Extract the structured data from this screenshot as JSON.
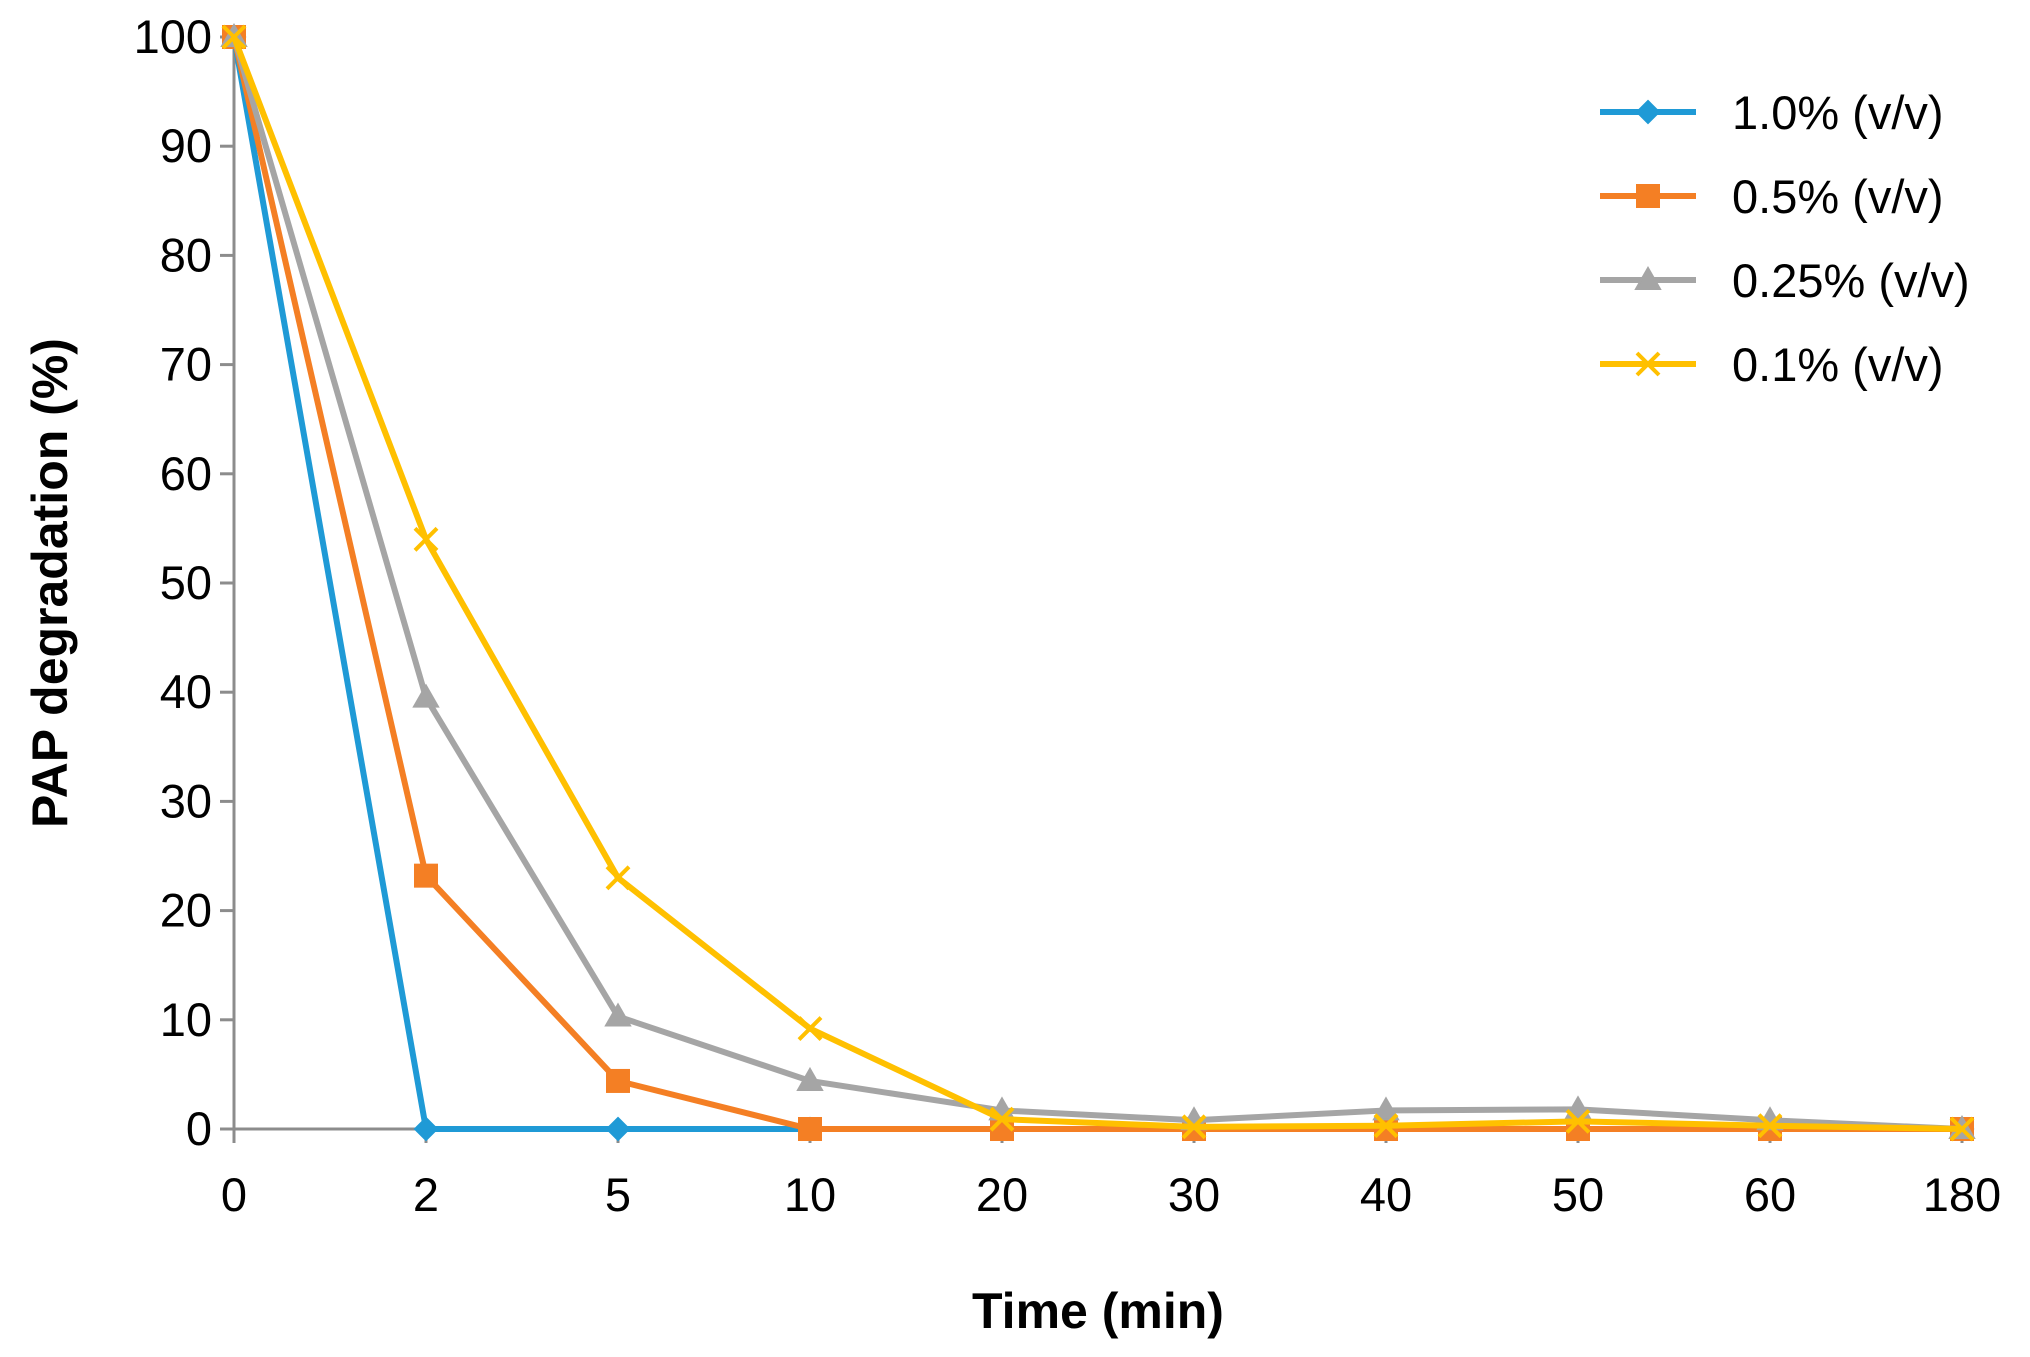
{
  "chart_data": {
    "type": "line",
    "title": "",
    "xlabel": "Time (min)",
    "ylabel": "PAP degradation (%)",
    "categories": [
      "0",
      "2",
      "5",
      "10",
      "20",
      "30",
      "40",
      "50",
      "60",
      "180"
    ],
    "ylim": [
      0,
      100
    ],
    "yticks": [
      0,
      10,
      20,
      30,
      40,
      50,
      60,
      70,
      80,
      90,
      100
    ],
    "grid": false,
    "legend_position": "top-right",
    "series": [
      {
        "name": "1.0% (v/v)",
        "color": "#1f9ad6",
        "marker": "diamond",
        "values": [
          100,
          0,
          0,
          0,
          0,
          0,
          0,
          0,
          0,
          0
        ]
      },
      {
        "name": "0.5% (v/v)",
        "color": "#f47f24",
        "marker": "square",
        "values": [
          100,
          23.2,
          4.4,
          0,
          0,
          0,
          0,
          0,
          0,
          0
        ]
      },
      {
        "name": "0.25% (v/v)",
        "color": "#a5a5a5",
        "marker": "triangle",
        "values": [
          100,
          39.5,
          10.3,
          4.4,
          1.7,
          0.8,
          1.7,
          1.8,
          0.8,
          0
        ]
      },
      {
        "name": "0.1% (v/v)",
        "color": "#ffc000",
        "marker": "x",
        "values": [
          100,
          54,
          23,
          9.2,
          0.9,
          0.2,
          0.3,
          0.7,
          0.3,
          0
        ]
      }
    ]
  }
}
